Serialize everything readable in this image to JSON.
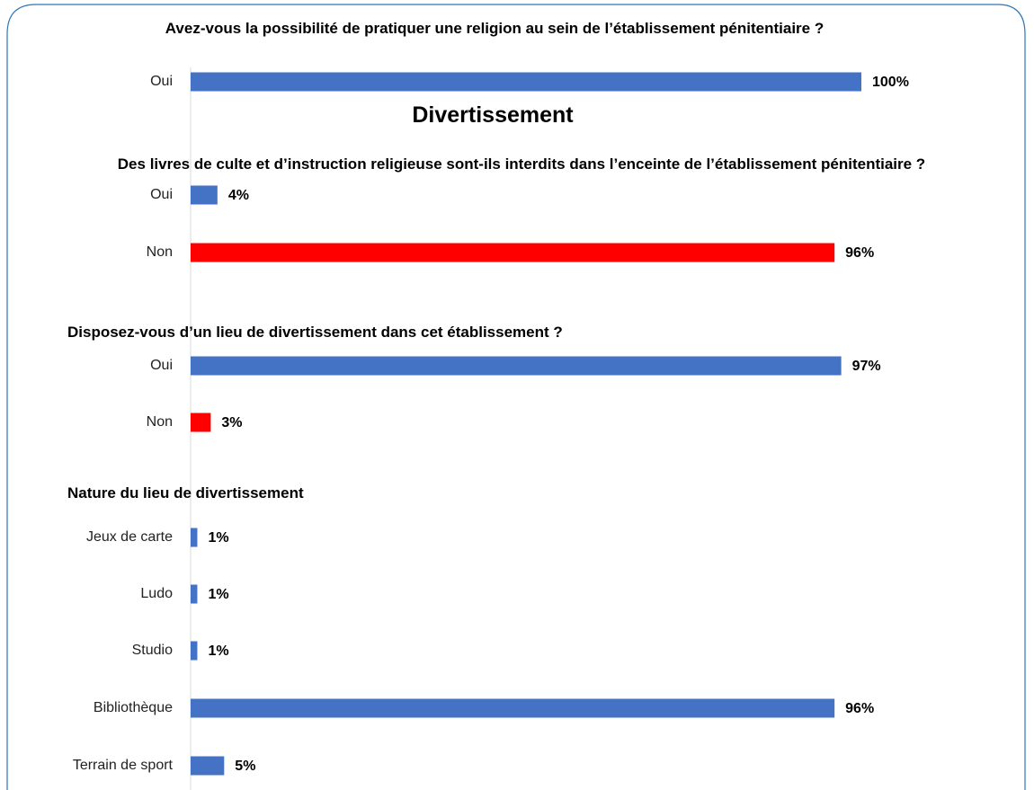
{
  "heading": "Divertissement",
  "chart_data": [
    {
      "type": "bar",
      "orientation": "horizontal",
      "title": "Avez-vous la possibilité de pratiquer une religion au sein de l’établissement pénitentiaire ?",
      "categories": [
        "Oui"
      ],
      "values": [
        100
      ],
      "value_labels": [
        "100%"
      ],
      "colors": [
        "#4472c4"
      ],
      "xlim": [
        0,
        100
      ]
    },
    {
      "type": "bar",
      "orientation": "horizontal",
      "title": "Des livres de culte et d’instruction religieuse sont-ils interdits dans l’enceinte de l’établissement pénitentiaire ?",
      "categories": [
        "Oui",
        "Non"
      ],
      "values": [
        4,
        96
      ],
      "value_labels": [
        "4%",
        "96%"
      ],
      "colors": [
        "#4472c4",
        "#ff0000"
      ],
      "xlim": [
        0,
        100
      ]
    },
    {
      "type": "bar",
      "orientation": "horizontal",
      "title": "Disposez-vous d’un lieu de divertissement dans cet établissement ?",
      "categories": [
        "Oui",
        "Non"
      ],
      "values": [
        97,
        3
      ],
      "value_labels": [
        "97%",
        "3%"
      ],
      "colors": [
        "#4472c4",
        "#ff0000"
      ],
      "xlim": [
        0,
        100
      ]
    },
    {
      "type": "bar",
      "orientation": "horizontal",
      "title": "Nature du lieu de divertissement",
      "categories": [
        "Jeux de carte",
        "Ludo",
        "Studio",
        "Bibliothèque",
        "Terrain de sport"
      ],
      "values": [
        1,
        1,
        1,
        96,
        5
      ],
      "value_labels": [
        "1%",
        "1%",
        "1%",
        "96%",
        "5%"
      ],
      "colors": [
        "#4472c4",
        "#4472c4",
        "#4472c4",
        "#4472c4",
        "#4472c4"
      ],
      "xlim": [
        0,
        100
      ]
    }
  ]
}
